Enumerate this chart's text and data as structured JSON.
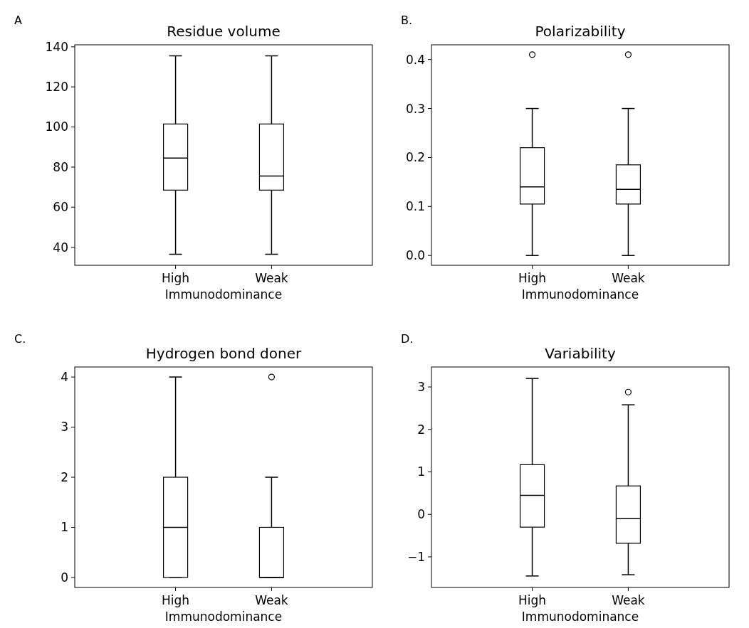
{
  "chart_data": [
    {
      "type": "box",
      "title": "Residue volume",
      "xlabel": "Immunodominance",
      "annotations": [
        "A"
      ],
      "categories": [
        "High",
        "Weak"
      ],
      "ylim": [
        31,
        141
      ],
      "yticks": [
        40,
        60,
        80,
        100,
        120,
        140
      ],
      "boxes": [
        {
          "low": 36.5,
          "q1": 68.5,
          "median": 84.5,
          "q3": 101.5,
          "high": 135.5
        },
        {
          "low": 36.5,
          "q1": 68.5,
          "median": 75.5,
          "q3": 101.5,
          "high": 135.5
        }
      ]
    },
    {
      "type": "box",
      "title": "Polarizability",
      "xlabel": "Immunodominance",
      "annotations": [
        "B."
      ],
      "categories": [
        "High",
        "Weak"
      ],
      "ylim": [
        -0.02,
        0.43
      ],
      "yticks": [
        {
          "value": 0,
          "label": "0.0"
        },
        0.1,
        0.2,
        0.3,
        0.4
      ],
      "boxes": [
        {
          "low": 0,
          "q1": 0.105,
          "median": 0.14,
          "q3": 0.22,
          "high": 0.3,
          "outliers": [
            0.41
          ]
        },
        {
          "low": 0,
          "q1": 0.105,
          "median": 0.135,
          "q3": 0.185,
          "high": 0.3,
          "outliers": [
            0.41
          ]
        }
      ]
    },
    {
      "type": "box",
      "title": "Hydrogen bond doner",
      "xlabel": "Immunodominance",
      "annotations": [
        "C."
      ],
      "categories": [
        "High",
        "Weak"
      ],
      "ylim": [
        -0.2,
        4.2
      ],
      "yticks": [
        0,
        1,
        2,
        3,
        4
      ],
      "boxes": [
        {
          "low": 0,
          "q1": 0,
          "median": 1,
          "q3": 2,
          "high": 4
        },
        {
          "low": 0,
          "q1": 0,
          "median": 0,
          "q3": 1,
          "high": 2,
          "outliers": [
            4
          ]
        }
      ]
    },
    {
      "type": "box",
      "title": "Variability",
      "xlabel": "Immunodominance",
      "annotations": [
        "D."
      ],
      "categories": [
        "High",
        "Weak"
      ],
      "ylim": [
        -1.72,
        3.47
      ],
      "yticks": [
        {
          "value": -1,
          "label": "−1"
        },
        0,
        1,
        2,
        3
      ],
      "boxes": [
        {
          "low": -1.45,
          "q1": -0.3,
          "median": 0.45,
          "q3": 1.17,
          "high": 3.2
        },
        {
          "low": -1.42,
          "q1": -0.68,
          "median": -0.1,
          "q3": 0.67,
          "high": 2.58,
          "outliers": [
            2.88
          ]
        }
      ]
    }
  ]
}
